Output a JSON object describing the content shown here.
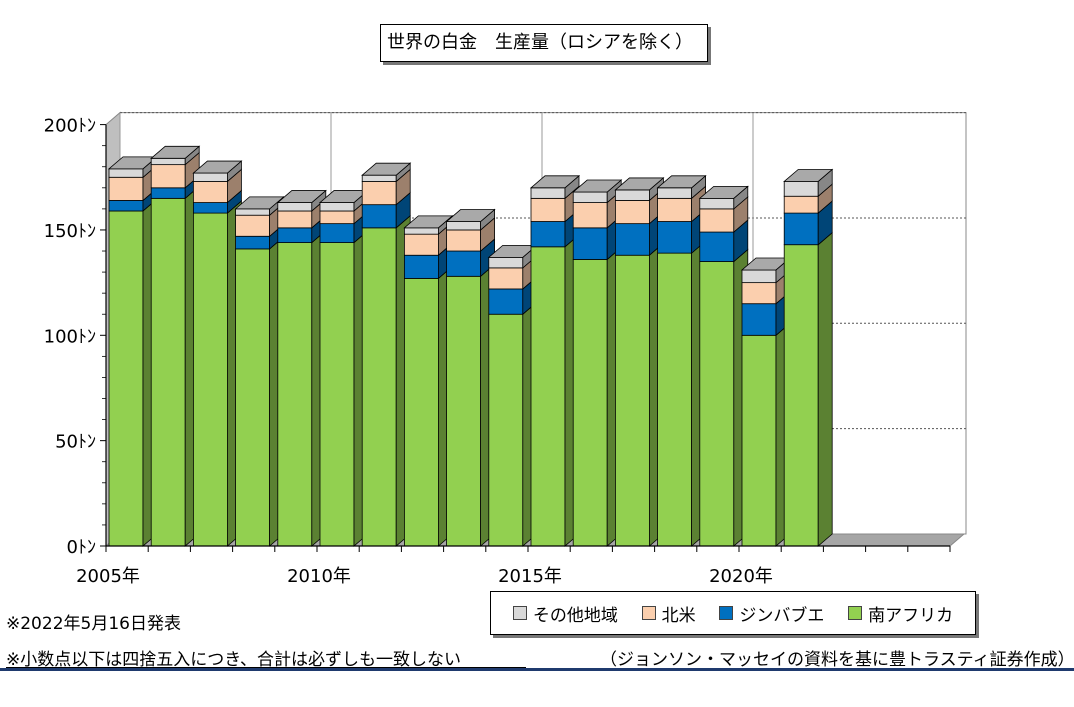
{
  "chart_data": {
    "type": "bar",
    "stacked": true,
    "three_d": true,
    "title": "世界の白金　生産量（ロシアを除く）",
    "y_tick_labels": [
      "0ﾄﾝ",
      "50ﾄﾝ",
      "100ﾄﾝ",
      "150ﾄﾝ",
      "200ﾄﾝ"
    ],
    "y_ticks": [
      0,
      50,
      100,
      150,
      200
    ],
    "ylim": [
      0,
      200
    ],
    "x_tick_labels": [
      "2005年",
      "2010年",
      "2015年",
      "2020年"
    ],
    "x_tick_years": [
      2005,
      2010,
      2015,
      2020
    ],
    "years": [
      2005,
      2006,
      2007,
      2008,
      2009,
      2010,
      2011,
      2012,
      2013,
      2014,
      2015,
      2016,
      2017,
      2018,
      2019,
      2020,
      2021
    ],
    "grid": true,
    "legend_position": "bottom-right",
    "series": [
      {
        "name": "南アフリカ",
        "color": "#92D050",
        "values": [
          159,
          165,
          158,
          141,
          144,
          144,
          151,
          127,
          128,
          110,
          142,
          136,
          138,
          139,
          135,
          100,
          143
        ]
      },
      {
        "name": "ジンバブエ",
        "color": "#0070C0",
        "values": [
          5,
          5,
          5,
          6,
          7,
          9,
          11,
          11,
          12,
          12,
          12,
          15,
          15,
          15,
          14,
          15,
          15
        ]
      },
      {
        "name": "北米",
        "color": "#FBCFAE",
        "values": [
          11,
          11,
          10,
          10,
          8,
          6,
          11,
          10,
          10,
          10,
          11,
          12,
          11,
          11,
          11,
          10,
          8
        ]
      },
      {
        "name": "その他地域",
        "color": "#D9D9D9",
        "values": [
          4,
          3,
          4,
          3,
          4,
          4,
          3,
          3,
          4,
          5,
          5,
          5,
          5,
          5,
          5,
          6,
          7
        ]
      }
    ]
  },
  "legend": {
    "items": [
      {
        "label": "その他地域",
        "color": "#D9D9D9"
      },
      {
        "label": "北米",
        "color": "#FBCFAE"
      },
      {
        "label": "ジンバブエ",
        "color": "#0070C0"
      },
      {
        "label": "南アフリカ",
        "color": "#92D050"
      }
    ]
  },
  "notes": {
    "release": "※2022年5月16日発表",
    "rounding": "※小数点以下は四捨五入につき、合計は必ずしも一致しない",
    "source": "（ジョンソン・マッセイの資料を基に豊トラスティ証券作成）"
  }
}
